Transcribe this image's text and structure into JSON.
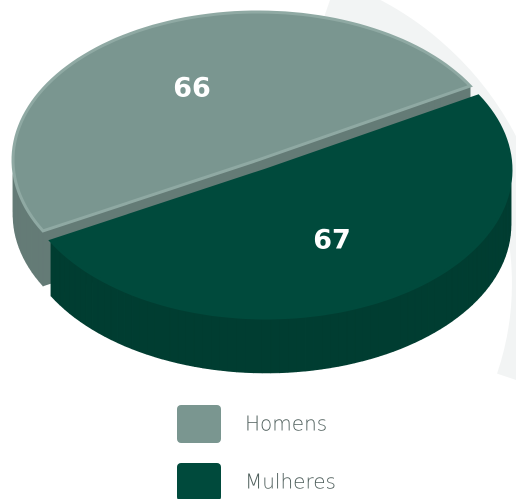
{
  "chart_data": {
    "type": "pie",
    "categories": [
      "Homens",
      "Mulheres"
    ],
    "values": [
      66,
      67
    ],
    "colors": [
      "#7a9690",
      "#004a3c"
    ],
    "legend": "bottom"
  }
}
